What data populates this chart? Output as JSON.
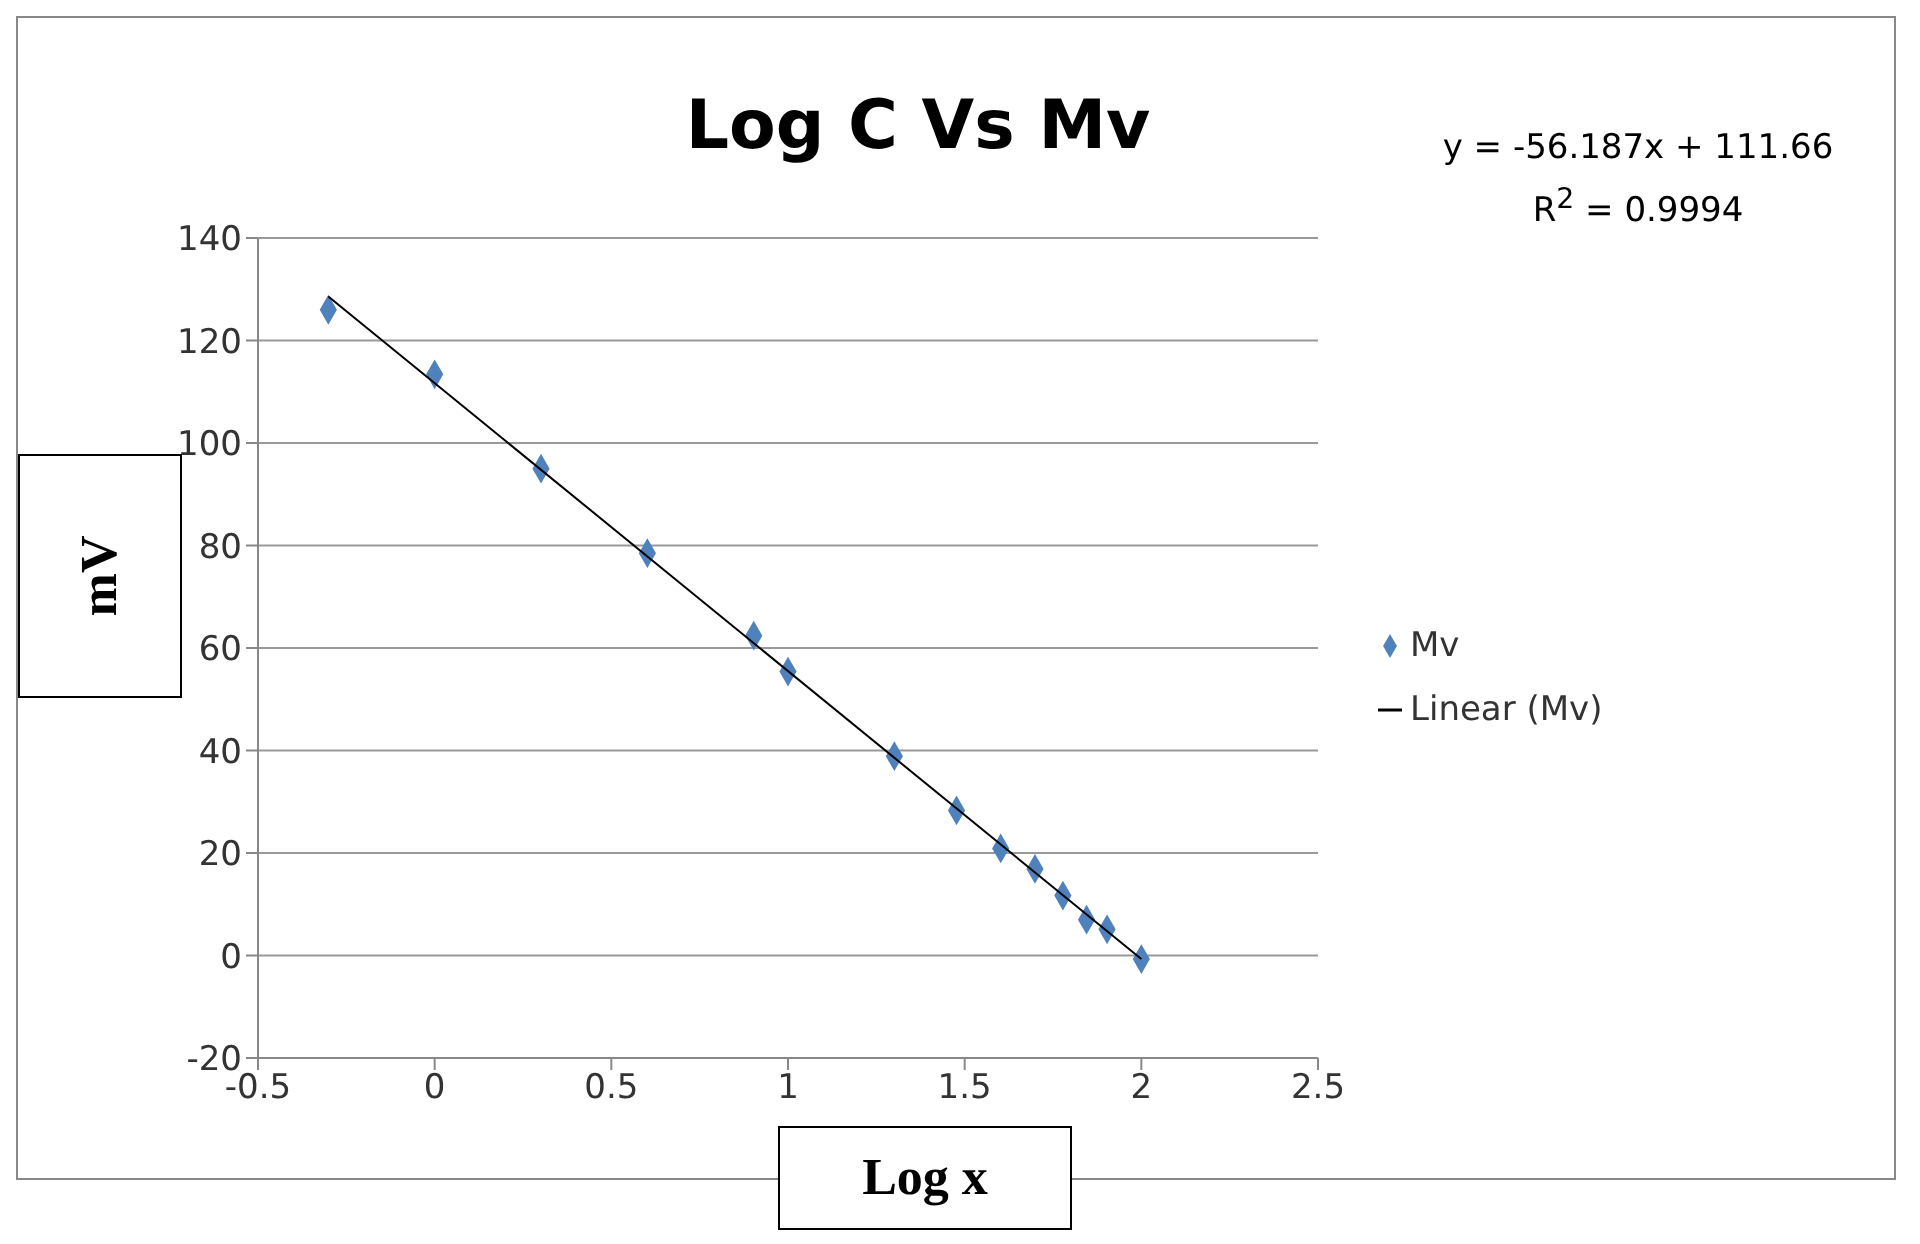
{
  "chart_data": {
    "type": "scatter",
    "title": "Log C Vs Mv",
    "xlabel": "Log x",
    "ylabel": "mV",
    "annotations": [
      "y = -56.187x + 111.66",
      "R$^{2}$ = 0.9994"
    ],
    "series": [
      {
        "name": "Mv",
        "marker": "diamond",
        "color": "#4f81bd",
        "x": [
          -0.301,
          0,
          0.301,
          0.602,
          0.903,
          1,
          1.301,
          1.477,
          1.602,
          1.699,
          1.778,
          1.845,
          1.903,
          2
        ],
        "values": [
          126,
          113.4,
          95,
          78.5,
          62.4,
          55.4,
          38.9,
          28.3,
          20.9,
          16.9,
          11.7,
          7,
          5.1,
          -0.7
        ]
      },
      {
        "name": "Linear (Mv)",
        "type": "line",
        "marker": "none",
        "color": "#000000",
        "x": [
          -0.301,
          2
        ],
        "values": [
          128.6,
          -0.7
        ]
      }
    ],
    "xlim": [
      -0.5,
      2.5
    ],
    "xticks": [
      -0.5,
      0,
      0.5,
      1,
      1.5,
      2,
      2.5
    ],
    "ylim": [
      -20,
      140
    ],
    "yticks": [
      -20,
      0,
      20,
      40,
      60,
      80,
      100,
      120,
      140
    ],
    "grid": "y",
    "legend": "right"
  }
}
